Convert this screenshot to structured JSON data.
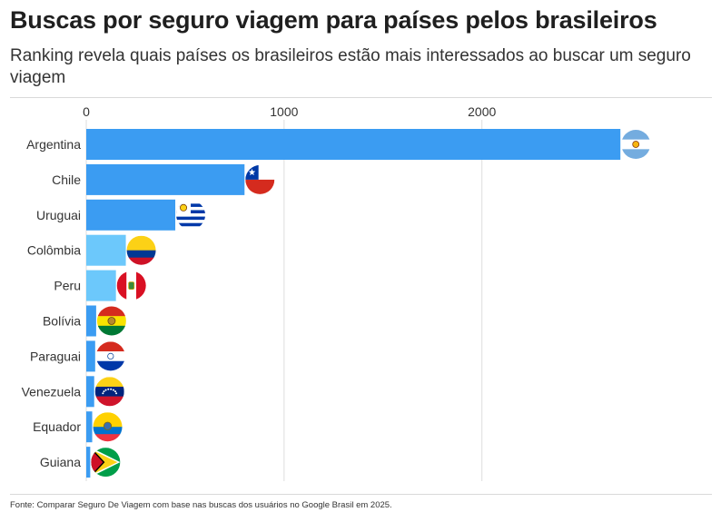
{
  "header": {
    "title": "Buscas por seguro viagem para países pelos brasileiros",
    "subtitle": "Ranking revela quais países os brasileiros estão mais interessados ao buscar um seguro viagem"
  },
  "footer": {
    "source": "Fonte: Comparar Seguro De Viagem com base nas buscas dos usuários no Google Brasil em 2025."
  },
  "colors": {
    "bar_default": "#3b9cf2",
    "bar_highlight": "#6cc8fb",
    "grid": "#dddddd",
    "label": "#333333"
  },
  "chart_data": {
    "type": "bar",
    "orientation": "horizontal",
    "title": "Buscas por seguro viagem para países pelos brasileiros",
    "xlabel": "",
    "ylabel": "",
    "xlim": [
      0,
      2800
    ],
    "ticks": [
      0,
      1000,
      2000
    ],
    "tick_labels": [
      "0",
      "1000",
      "2000"
    ],
    "grid": true,
    "categories": [
      "Argentina",
      "Chile",
      "Uruguai",
      "Colômbia",
      "Peru",
      "Bolívia",
      "Paraguai",
      "Venezuela",
      "Equador",
      "Guiana"
    ],
    "values": [
      2700,
      800,
      450,
      200,
      150,
      50,
      45,
      40,
      30,
      20
    ],
    "highlight": [
      false,
      false,
      false,
      true,
      true,
      false,
      false,
      false,
      false,
      false
    ],
    "flags": [
      "argentina-flag",
      "chile-flag",
      "uruguay-flag",
      "colombia-flag",
      "peru-flag",
      "bolivia-flag",
      "paraguay-flag",
      "venezuela-flag",
      "ecuador-flag",
      "guyana-flag"
    ]
  }
}
